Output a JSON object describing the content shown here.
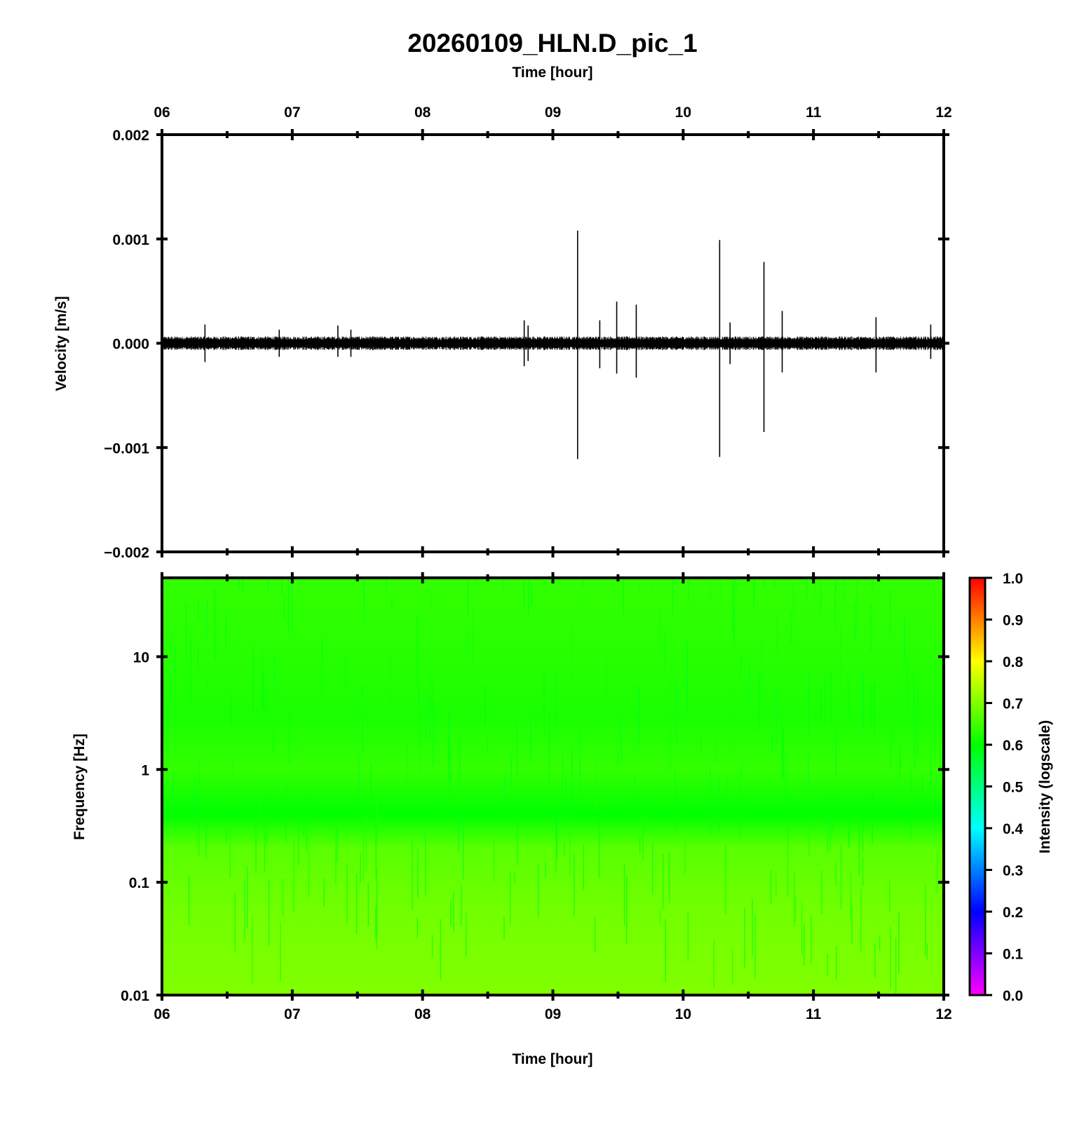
{
  "chart_data": [
    {
      "type": "line",
      "title": "20260109_HLN.D_pic_1",
      "xlabel": "Time [hour]",
      "ylabel": "Velocity [m/s]",
      "xlim": [
        6,
        12
      ],
      "ylim": [
        -0.002,
        0.002
      ],
      "x_ticks": [
        "06",
        "07",
        "08",
        "09",
        "10",
        "11",
        "12"
      ],
      "y_ticks": [
        "0.002",
        "0.001",
        "0.000",
        "−0.001",
        "−0.002"
      ],
      "background_noise_amplitude": 6e-05,
      "spikes": [
        {
          "x": 6.33,
          "ymax": 0.00018,
          "ymin": -0.00018
        },
        {
          "x": 6.9,
          "ymax": 0.00013,
          "ymin": -0.00013
        },
        {
          "x": 7.35,
          "ymax": 0.00017,
          "ymin": -0.00013
        },
        {
          "x": 7.45,
          "ymax": 0.00013,
          "ymin": -0.00013
        },
        {
          "x": 8.78,
          "ymax": 0.00022,
          "ymin": -0.00022
        },
        {
          "x": 8.81,
          "ymax": 0.00017,
          "ymin": -0.00017
        },
        {
          "x": 9.19,
          "ymax": 0.00108,
          "ymin": -0.00111
        },
        {
          "x": 9.36,
          "ymax": 0.00022,
          "ymin": -0.00024
        },
        {
          "x": 9.49,
          "ymax": 0.0004,
          "ymin": -0.00029
        },
        {
          "x": 9.64,
          "ymax": 0.00037,
          "ymin": -0.00033
        },
        {
          "x": 10.28,
          "ymax": 0.00099,
          "ymin": -0.00109
        },
        {
          "x": 10.36,
          "ymax": 0.0002,
          "ymin": -0.0002
        },
        {
          "x": 10.62,
          "ymax": 0.00078,
          "ymin": -0.00085
        },
        {
          "x": 10.76,
          "ymax": 0.00031,
          "ymin": -0.00028
        },
        {
          "x": 11.48,
          "ymax": 0.00025,
          "ymin": -0.00028
        },
        {
          "x": 11.9,
          "ymax": 0.00018,
          "ymin": -0.00015
        }
      ]
    },
    {
      "type": "heatmap",
      "xlabel": "Time [hour]",
      "ylabel": "Frequency [Hz]",
      "xlim": [
        6,
        12
      ],
      "ylim": [
        0.01,
        50
      ],
      "y_scale": "log",
      "x_ticks": [
        "06",
        "07",
        "08",
        "09",
        "10",
        "11",
        "12"
      ],
      "y_ticks": [
        "10",
        "1",
        "0.1",
        "0.01"
      ],
      "colorbar_label": "Intensity (logscale)",
      "colorbar_ticks": [
        "1.0",
        "0.9",
        "0.8",
        "0.7",
        "0.6",
        "0.5",
        "0.4",
        "0.3",
        "0.2",
        "0.1",
        "0.0"
      ],
      "colormap": [
        "#ff00ff",
        "#0000ff",
        "#00ffff",
        "#00ff00",
        "#ffff00",
        "#ff0000"
      ],
      "intensity_profile": [
        {
          "freq": 50,
          "intensity": 0.64
        },
        {
          "freq": 10,
          "intensity": 0.63
        },
        {
          "freq": 3,
          "intensity": 0.62
        },
        {
          "freq": 1,
          "intensity": 0.64
        },
        {
          "freq": 0.4,
          "intensity": 0.6
        },
        {
          "freq": 0.2,
          "intensity": 0.67
        },
        {
          "freq": 0.05,
          "intensity": 0.69
        },
        {
          "freq": 0.01,
          "intensity": 0.7
        }
      ]
    }
  ]
}
